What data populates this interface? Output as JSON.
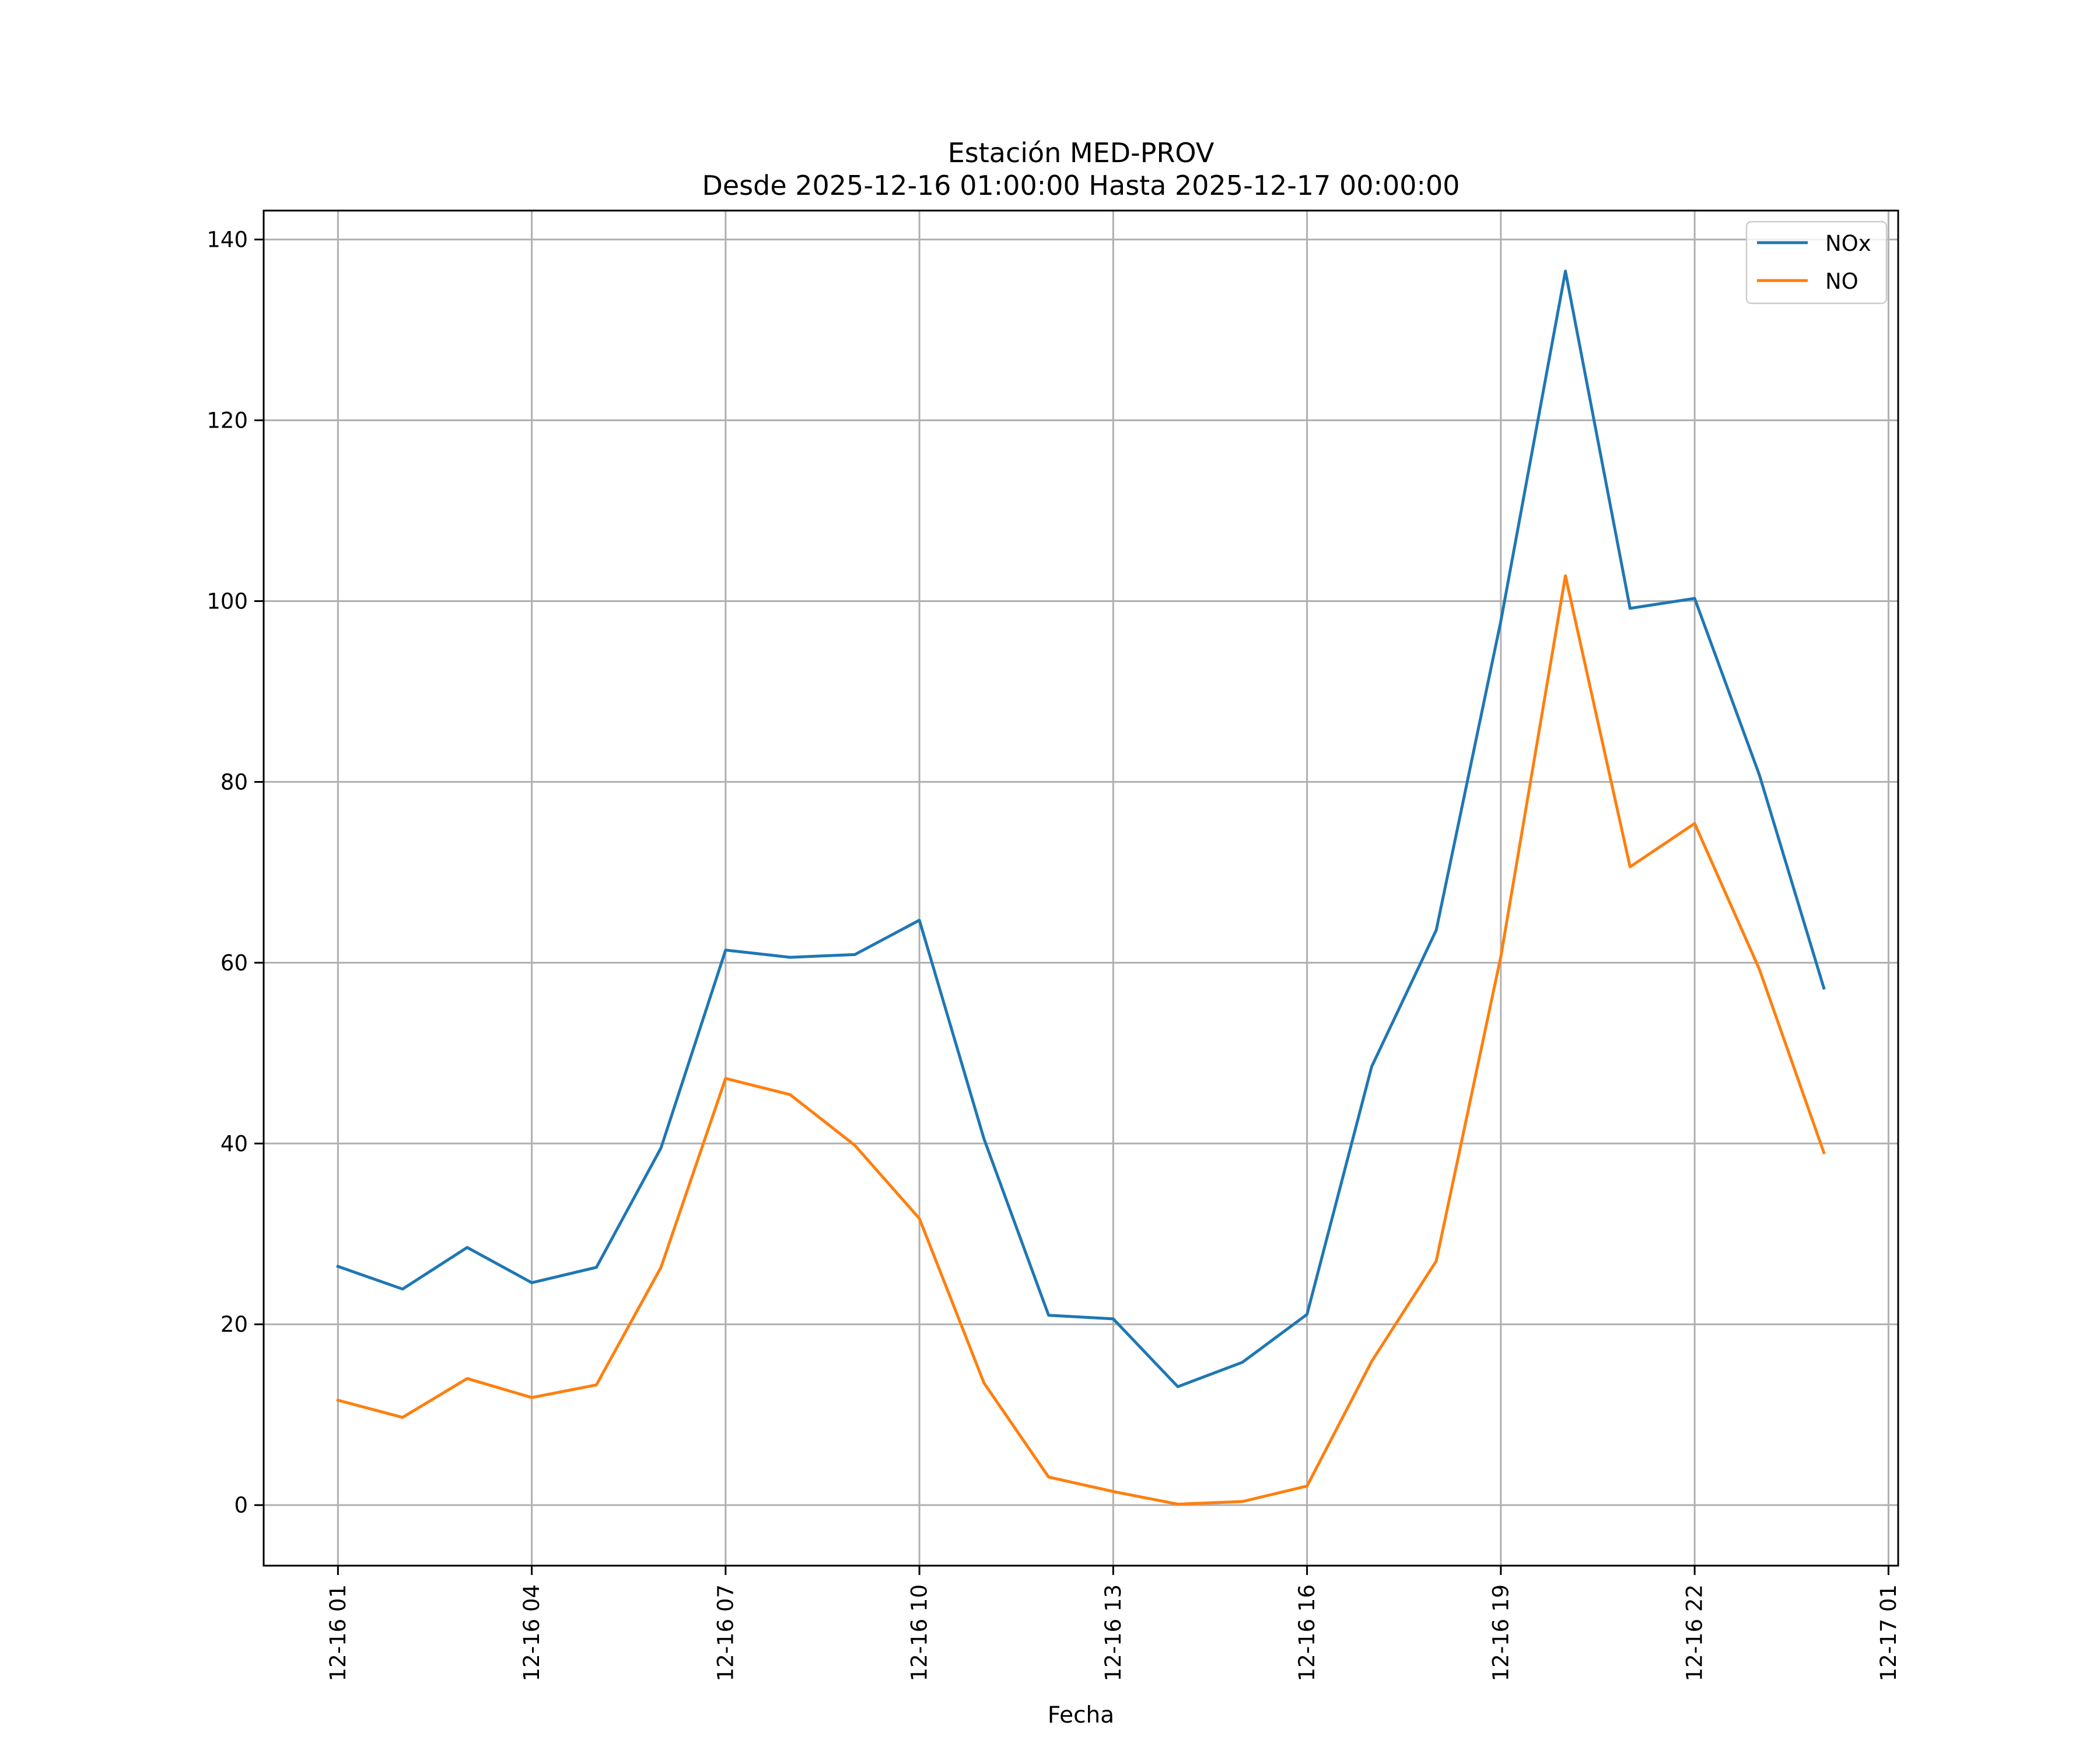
{
  "chart_data": {
    "type": "line",
    "title_line1": "Estación MED-PROV",
    "title_line2": "Desde 2025-12-16 01:00:00 Hasta 2025-12-17 00:00:00",
    "xlabel": "Fecha",
    "ylabel": "",
    "x_hours": [
      1,
      2,
      3,
      4,
      5,
      6,
      7,
      8,
      9,
      10,
      11,
      12,
      13,
      14,
      15,
      16,
      17,
      18,
      19,
      20,
      21,
      22,
      23,
      24
    ],
    "x_tick_hours": [
      1,
      4,
      7,
      10,
      13,
      16,
      19,
      22,
      25
    ],
    "x_tick_labels": [
      "12-16 01",
      "12-16 04",
      "12-16 07",
      "12-16 10",
      "12-16 13",
      "12-16 16",
      "12-16 19",
      "12-16 22",
      "12-17 01"
    ],
    "xlim": [
      -0.15,
      25.15
    ],
    "ylim": [
      -6.7,
      143.2
    ],
    "y_ticks": [
      0,
      20,
      40,
      60,
      80,
      100,
      120,
      140
    ],
    "y_tick_labels": [
      "0",
      "20",
      "40",
      "60",
      "80",
      "100",
      "120",
      "140"
    ],
    "grid": true,
    "legend_position": "top-right",
    "series": [
      {
        "name": "NOx",
        "color": "#1f77b4",
        "values": [
          26.4,
          23.9,
          28.5,
          24.6,
          26.3,
          39.5,
          61.4,
          60.6,
          60.9,
          64.7,
          40.5,
          21.0,
          20.6,
          13.1,
          15.8,
          21.1,
          48.5,
          63.6,
          97.8,
          136.5,
          99.2,
          100.3,
          80.8,
          57.2
        ]
      },
      {
        "name": "NO",
        "color": "#ff7f0e",
        "values": [
          11.6,
          9.7,
          14.0,
          11.9,
          13.3,
          26.3,
          47.2,
          45.4,
          39.8,
          31.7,
          13.5,
          3.1,
          1.5,
          0.1,
          0.4,
          2.1,
          15.9,
          27.0,
          60.7,
          102.8,
          70.6,
          75.4,
          59.3,
          39.0
        ]
      }
    ]
  }
}
